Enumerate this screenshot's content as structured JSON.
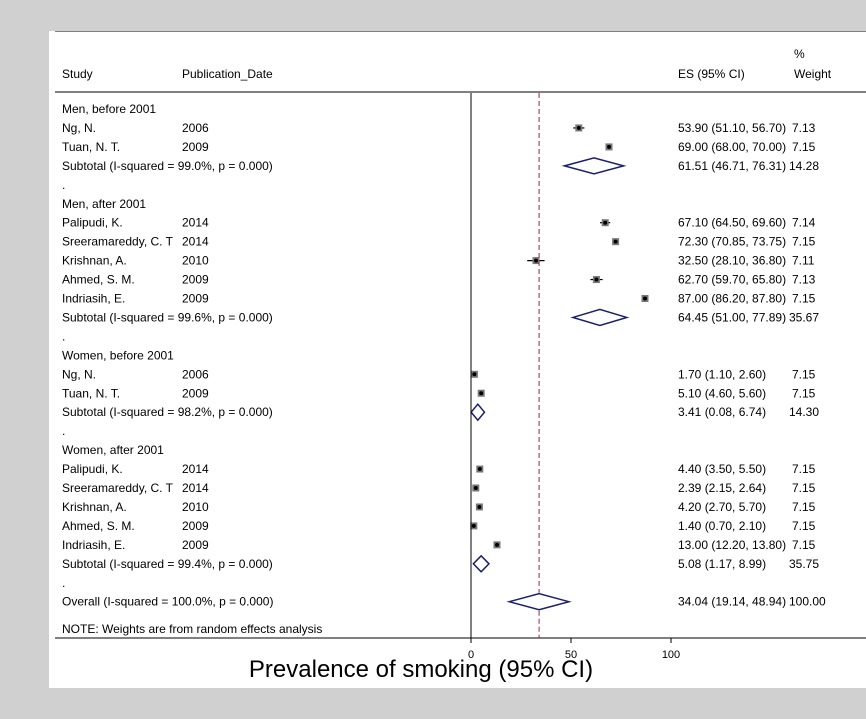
{
  "chart_data": {
    "type": "forest",
    "xlabel": "Prevalence of smoking (95% CI)",
    "xlim": [
      0,
      100
    ],
    "xticks": [
      "0",
      "50",
      "100"
    ],
    "reference_line": 34.04,
    "headers": {
      "study": "Study",
      "date": "Publication_Date",
      "es": "ES (95% CI)",
      "weight_pct": "%",
      "weight": "Weight"
    },
    "rows": [
      {
        "type": "group",
        "label": "Men, before 2001"
      },
      {
        "type": "study",
        "label": "Ng, N.",
        "date": "2006",
        "es": 53.9,
        "lo": 51.1,
        "hi": 56.7,
        "es_text": "53.90 (51.10, 56.70)",
        "weight": "7.13"
      },
      {
        "type": "study",
        "label": "Tuan, N. T.",
        "date": "2009",
        "es": 69.0,
        "lo": 68.0,
        "hi": 70.0,
        "es_text": "69.00 (68.00, 70.00)",
        "weight": "7.15"
      },
      {
        "type": "subtotal",
        "label": "Subtotal  (I-squared = 99.0%, p = 0.000)",
        "es": 61.51,
        "lo": 46.71,
        "hi": 76.31,
        "es_text": "61.51 (46.71, 76.31)",
        "weight": "14.28"
      },
      {
        "type": "spacer",
        "label": "."
      },
      {
        "type": "group",
        "label": "Men, after 2001"
      },
      {
        "type": "study",
        "label": "Palipudi, K.",
        "date": "2014",
        "es": 67.1,
        "lo": 64.5,
        "hi": 69.6,
        "es_text": "67.10 (64.50, 69.60)",
        "weight": "7.14"
      },
      {
        "type": "study",
        "label": "Sreeramareddy, C. T",
        "date": "2014",
        "es": 72.3,
        "lo": 70.85,
        "hi": 73.75,
        "es_text": "72.30 (70.85, 73.75)",
        "weight": "7.15"
      },
      {
        "type": "study",
        "label": "Krishnan, A.",
        "date": "2010",
        "es": 32.5,
        "lo": 28.1,
        "hi": 36.8,
        "es_text": "32.50 (28.10, 36.80)",
        "weight": "7.11"
      },
      {
        "type": "study",
        "label": "Ahmed, S. M.",
        "date": "2009",
        "es": 62.7,
        "lo": 59.7,
        "hi": 65.8,
        "es_text": "62.70 (59.70, 65.80)",
        "weight": "7.13"
      },
      {
        "type": "study",
        "label": "Indriasih, E.",
        "date": "2009",
        "es": 87.0,
        "lo": 86.2,
        "hi": 87.8,
        "es_text": "87.00 (86.20, 87.80)",
        "weight": "7.15"
      },
      {
        "type": "subtotal",
        "label": "Subtotal  (I-squared = 99.6%, p = 0.000)",
        "es": 64.45,
        "lo": 51.0,
        "hi": 77.89,
        "es_text": "64.45 (51.00, 77.89)",
        "weight": "35.67"
      },
      {
        "type": "spacer",
        "label": "."
      },
      {
        "type": "group",
        "label": "Women, before 2001"
      },
      {
        "type": "study",
        "label": "Ng, N.",
        "date": "2006",
        "es": 1.7,
        "lo": 1.1,
        "hi": 2.6,
        "es_text": "1.70 (1.10, 2.60)",
        "weight": "7.15"
      },
      {
        "type": "study",
        "label": "Tuan, N. T.",
        "date": "2009",
        "es": 5.1,
        "lo": 4.6,
        "hi": 5.6,
        "es_text": "5.10 (4.60, 5.60)",
        "weight": "7.15"
      },
      {
        "type": "subtotal",
        "label": "Subtotal  (I-squared = 98.2%, p = 0.000)",
        "es": 3.41,
        "lo": 0.08,
        "hi": 6.74,
        "es_text": "3.41 (0.08, 6.74)",
        "weight": "14.30"
      },
      {
        "type": "spacer",
        "label": "."
      },
      {
        "type": "group",
        "label": "Women, after 2001"
      },
      {
        "type": "study",
        "label": "Palipudi, K.",
        "date": "2014",
        "es": 4.4,
        "lo": 3.5,
        "hi": 5.5,
        "es_text": "4.40 (3.50, 5.50)",
        "weight": "7.15"
      },
      {
        "type": "study",
        "label": "Sreeramareddy, C. T",
        "date": "2014",
        "es": 2.39,
        "lo": 2.15,
        "hi": 2.64,
        "es_text": "2.39 (2.15, 2.64)",
        "weight": "7.15"
      },
      {
        "type": "study",
        "label": "Krishnan, A.",
        "date": "2010",
        "es": 4.2,
        "lo": 2.7,
        "hi": 5.7,
        "es_text": "4.20 (2.70, 5.70)",
        "weight": "7.15"
      },
      {
        "type": "study",
        "label": "Ahmed, S. M.",
        "date": "2009",
        "es": 1.4,
        "lo": 0.7,
        "hi": 2.1,
        "es_text": "1.40 (0.70, 2.10)",
        "weight": "7.15"
      },
      {
        "type": "study",
        "label": "Indriasih, E.",
        "date": "2009",
        "es": 13.0,
        "lo": 12.2,
        "hi": 13.8,
        "es_text": "13.00 (12.20, 13.80)",
        "weight": "7.15"
      },
      {
        "type": "subtotal",
        "label": "Subtotal  (I-squared = 99.4%, p = 0.000)",
        "es": 5.08,
        "lo": 1.17,
        "hi": 8.99,
        "es_text": "5.08 (1.17, 8.99)",
        "weight": "35.75"
      },
      {
        "type": "spacer",
        "label": "."
      },
      {
        "type": "overall",
        "label": "Overall  (I-squared = 100.0%, p = 0.000)",
        "es": 34.04,
        "lo": 19.14,
        "hi": 48.94,
        "es_text": "34.04 (19.14, 48.94)",
        "weight": "100.00"
      }
    ],
    "note": "NOTE: Weights are from random effects analysis",
    "colors": {
      "diamond": "#1a1f6e",
      "reference_line": "#a02040",
      "marker": "#000000"
    }
  }
}
